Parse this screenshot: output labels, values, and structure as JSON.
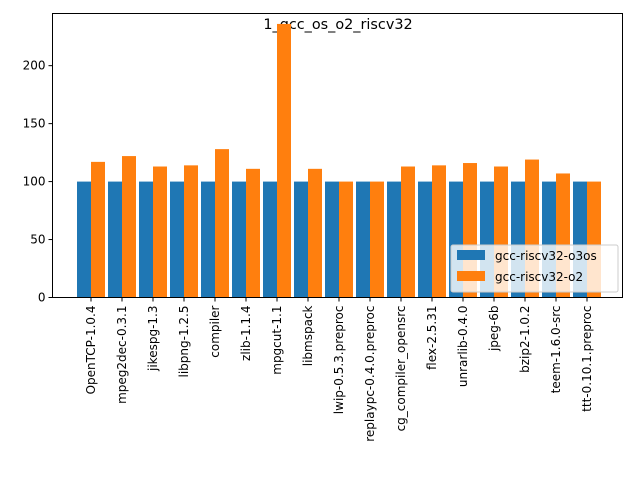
{
  "chart_data": {
    "type": "bar",
    "title": "1_gcc_os_o2_riscv32",
    "xlabel": "",
    "ylabel": "",
    "ylim": [
      0,
      245
    ],
    "yticks": [
      0,
      50,
      100,
      150,
      200
    ],
    "grid": false,
    "legend_position": "lower-right",
    "categories": [
      "OpenTCP-1.0.4",
      "mpeg2dec-0.3.1",
      "jikespg-1.3",
      "libpng-1.2.5",
      "compiler",
      "zlib-1.1.4",
      "mpgcut-1.1",
      "libmspack",
      "lwip-0.5.3.preproc",
      "replaypc-0.4.0.preproc",
      "cg_compiler_opensrc",
      "flex-2.5.31",
      "unrarlib-0.4.0",
      "jpeg-6b",
      "bzip2-1.0.2",
      "teem-1.6.0-src",
      "ttt-0.10.1.preproc"
    ],
    "series": [
      {
        "name": "gcc-riscv32-o3os",
        "color": "#1f77b4",
        "values": [
          100,
          100,
          100,
          100,
          100,
          100,
          100,
          100,
          100,
          100,
          100,
          100,
          100,
          100,
          100,
          100,
          100
        ]
      },
      {
        "name": "gcc-riscv32-o2",
        "color": "#ff7f0e",
        "values": [
          117,
          122,
          113,
          114,
          128,
          111,
          236,
          111,
          100,
          100,
          113,
          114,
          116,
          113,
          119,
          107,
          100
        ]
      }
    ]
  }
}
